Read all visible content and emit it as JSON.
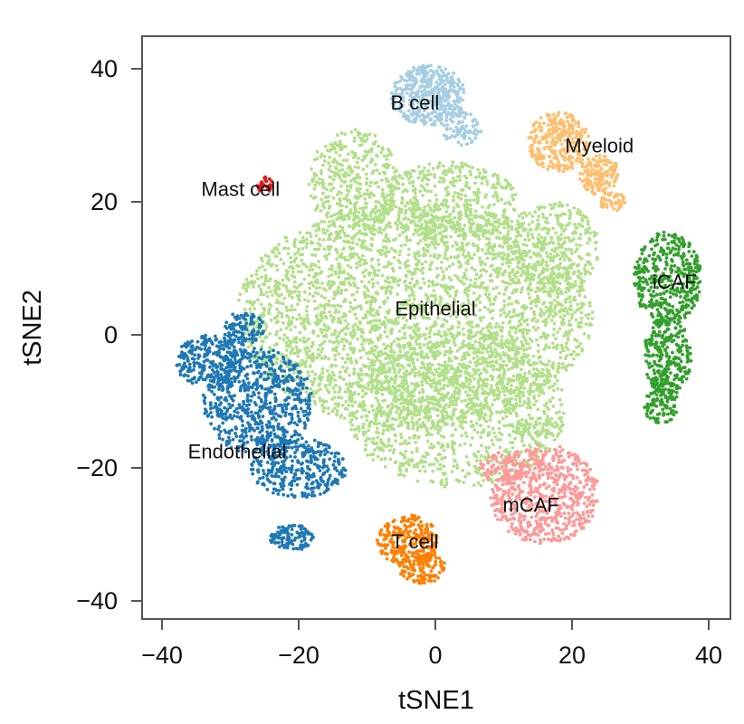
{
  "chart_data": {
    "type": "scatter",
    "title": "",
    "xlabel": "tSNE1",
    "ylabel": "tSNE2",
    "xlim": [
      -43,
      43
    ],
    "ylim": [
      -42,
      45
    ],
    "xticks": [
      -40,
      -20,
      0,
      20,
      40
    ],
    "yticks": [
      -40,
      -20,
      0,
      20,
      40
    ],
    "xtick_labels": [
      "−40",
      "−20",
      "0",
      "20",
      "40"
    ],
    "ytick_labels": [
      "−40",
      "−20",
      "0",
      "20",
      "40"
    ],
    "grid": false,
    "legend": "none",
    "clusters": [
      {
        "name": "Epithelial",
        "label": "Epithelial",
        "color": "#b2df8a",
        "label_at": [
          0,
          4
        ],
        "blobs": [
          {
            "cx": -3,
            "cy": 3,
            "rx": 26,
            "ry": 17,
            "n": 3200
          },
          {
            "cx": 3,
            "cy": -11,
            "rx": 16,
            "ry": 12,
            "n": 1100
          },
          {
            "cx": -12,
            "cy": 23,
            "rx": 6.5,
            "ry": 8,
            "n": 380
          },
          {
            "cx": 2,
            "cy": 20,
            "rx": 10,
            "ry": 6,
            "n": 450
          },
          {
            "cx": 17,
            "cy": 13,
            "rx": 7,
            "ry": 7,
            "n": 350
          },
          {
            "cx": 15,
            "cy": -14,
            "rx": 4,
            "ry": 1.5,
            "n": 60
          }
        ]
      },
      {
        "name": "B cell",
        "label": "B cell",
        "color": "#a6cee3",
        "label_at": [
          -3,
          35
        ],
        "blobs": [
          {
            "cx": -1,
            "cy": 36,
            "rx": 5.5,
            "ry": 4.5,
            "n": 420
          },
          {
            "cx": 4,
            "cy": 31,
            "rx": 3,
            "ry": 2.5,
            "n": 80
          }
        ]
      },
      {
        "name": "Myeloid",
        "label": "Myeloid",
        "color": "#fdbf6f",
        "label_at": [
          24,
          28.5
        ],
        "blobs": [
          {
            "cx": 18,
            "cy": 29,
            "rx": 4.5,
            "ry": 4.5,
            "n": 300
          },
          {
            "cx": 24,
            "cy": 24,
            "rx": 3,
            "ry": 3,
            "n": 150
          },
          {
            "cx": 26,
            "cy": 20,
            "rx": 2,
            "ry": 1.4,
            "n": 50
          }
        ]
      },
      {
        "name": "Mast cell",
        "label": "Mast cell",
        "color": "#e31a1c",
        "label_at": [
          -28.5,
          22
        ],
        "blobs": [
          {
            "cx": -25,
            "cy": 22.5,
            "rx": 1.3,
            "ry": 1.3,
            "n": 30
          }
        ]
      },
      {
        "name": "iCAF",
        "label": "iCAF",
        "color": "#33a02c",
        "label_at": [
          35,
          8
        ],
        "blobs": [
          {
            "cx": 34,
            "cy": 8.5,
            "rx": 5,
            "ry": 7,
            "n": 420
          },
          {
            "cx": 34,
            "cy": -3,
            "rx": 3.5,
            "ry": 6,
            "n": 260
          },
          {
            "cx": 33,
            "cy": -10,
            "rx": 2.5,
            "ry": 4,
            "n": 120
          }
        ]
      },
      {
        "name": "Endothelial",
        "label": "Endothelial",
        "color": "#1f78b4",
        "label_at": [
          -29,
          -17.5
        ],
        "blobs": [
          {
            "cx": -33,
            "cy": -4,
            "rx": 5,
            "ry": 4,
            "n": 260
          },
          {
            "cx": -26,
            "cy": -10,
            "rx": 8,
            "ry": 8,
            "n": 650
          },
          {
            "cx": -20,
            "cy": -20,
            "rx": 7,
            "ry": 4.5,
            "n": 350
          },
          {
            "cx": -28,
            "cy": 1,
            "rx": 3,
            "ry": 2.5,
            "n": 110
          }
        ]
      },
      {
        "name": "Endothelial subcluster",
        "label": "",
        "color": "#1f78b4",
        "blobs": [
          {
            "cx": -21,
            "cy": -30.5,
            "rx": 3.2,
            "ry": 2,
            "n": 110
          }
        ]
      },
      {
        "name": "T cell",
        "label": "T cell",
        "color": "#ff7f00",
        "label_at": [
          -3,
          -31
        ],
        "blobs": [
          {
            "cx": -4,
            "cy": -31,
            "rx": 4.5,
            "ry": 4,
            "n": 240
          },
          {
            "cx": -2,
            "cy": -35,
            "rx": 3.5,
            "ry": 2.5,
            "n": 110
          }
        ]
      },
      {
        "name": "mCAF",
        "label": "mCAF",
        "color": "#fb9a99",
        "label_at": [
          14,
          -25.5
        ],
        "blobs": [
          {
            "cx": 16,
            "cy": -24,
            "rx": 8,
            "ry": 7.5,
            "n": 650
          },
          {
            "cx": 10,
            "cy": -20,
            "rx": 3.5,
            "ry": 2.5,
            "n": 80
          }
        ]
      }
    ]
  }
}
